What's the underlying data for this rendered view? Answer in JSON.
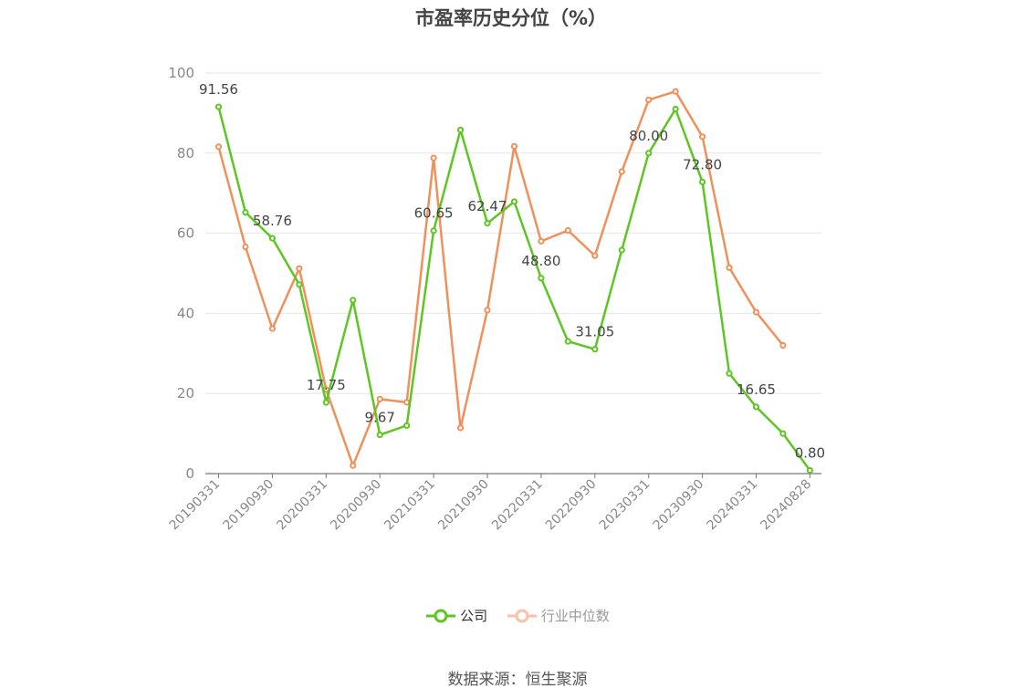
{
  "chart_data": {
    "type": "line",
    "title": "市盈率历史分位（%）",
    "ylim": [
      0,
      100
    ],
    "yticks": [
      0,
      20,
      40,
      60,
      80,
      100
    ],
    "xtick_labels": [
      "20190331",
      "20190930",
      "20200331",
      "20200930",
      "20210331",
      "20210930",
      "20220331",
      "20220930",
      "20230331",
      "20230930",
      "20240331",
      "20240828"
    ],
    "x": [
      "20190331",
      "20190630",
      "20190930",
      "20191231",
      "20200331",
      "20200630",
      "20200930",
      "20201231",
      "20210331",
      "20210630",
      "20210930",
      "20211231",
      "20220331",
      "20220630",
      "20220930",
      "20221231",
      "20230331",
      "20230630",
      "20230930",
      "20231231",
      "20240331",
      "20240630",
      "20240828"
    ],
    "series": [
      {
        "name": "公司",
        "color": "#5ec623",
        "values": [
          91.56,
          65.2,
          58.76,
          47.2,
          17.75,
          43.3,
          9.67,
          12.0,
          60.65,
          85.8,
          62.47,
          67.9,
          48.8,
          33.0,
          31.05,
          55.8,
          80.0,
          91.0,
          72.8,
          25.0,
          16.65,
          10.0,
          0.8
        ],
        "labels": [
          "91.56",
          "",
          "58.76",
          "",
          "17.75",
          "",
          "9.67",
          "",
          "60.65",
          "",
          "62.47",
          "",
          "48.80",
          "",
          "31.05",
          "",
          "80.00",
          "",
          "72.80",
          "",
          "16.65",
          "",
          "0.80"
        ]
      },
      {
        "name": "行业中位数",
        "color": "#f0915c",
        "values": [
          81.6,
          56.6,
          36.2,
          51.2,
          21.0,
          2.0,
          18.6,
          17.8,
          78.8,
          11.4,
          40.8,
          81.7,
          58.0,
          60.7,
          54.4,
          75.4,
          93.3,
          95.4,
          84.1,
          51.4,
          40.3,
          32.0,
          null
        ]
      }
    ],
    "legend_position": "bottom",
    "grid": true,
    "source": "数据来源：恒生聚源"
  },
  "legend": {
    "company": "公司",
    "industry": "行业中位数"
  }
}
